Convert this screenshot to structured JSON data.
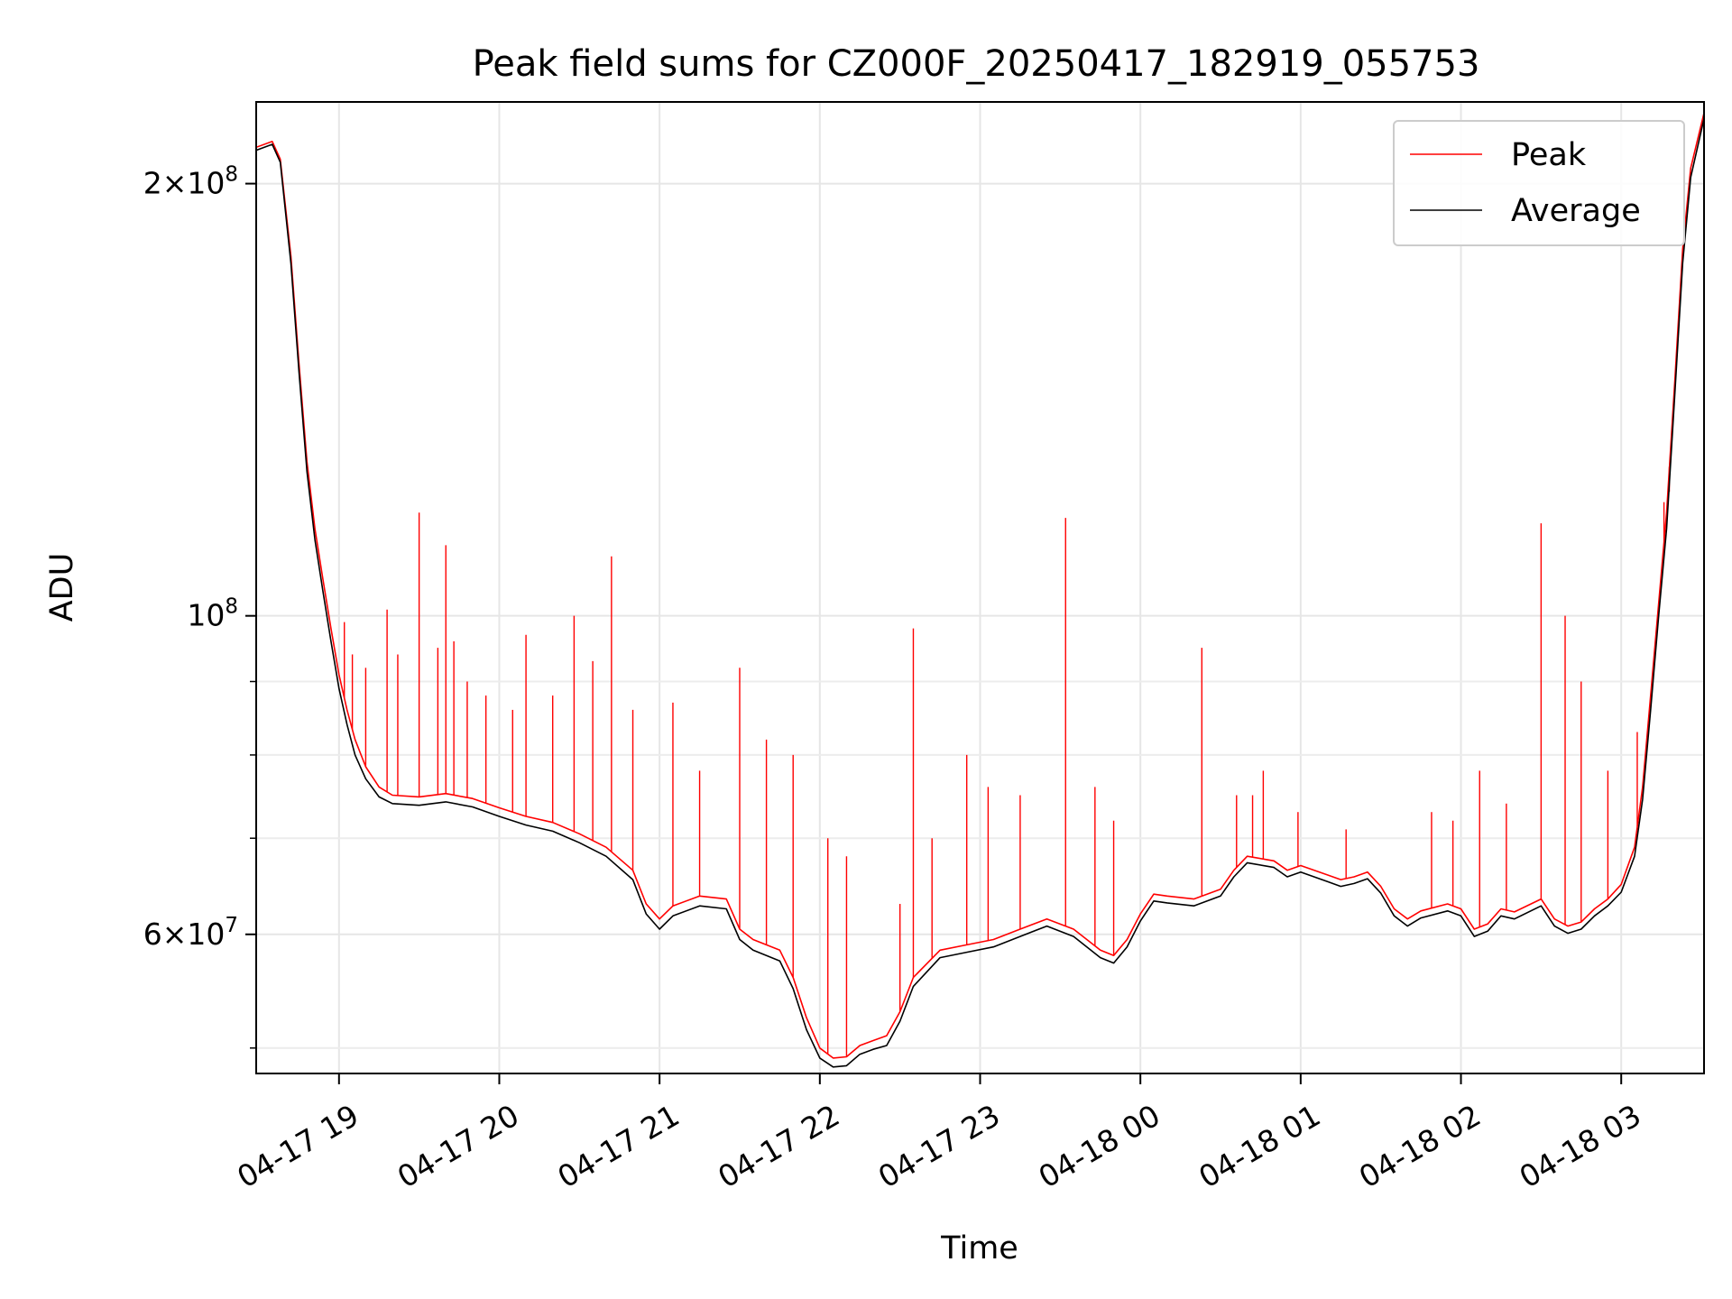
{
  "chart_data": {
    "type": "line",
    "title": "Peak field sums for CZ000F_20250417_182919_055753",
    "xlabel": "Time",
    "ylabel": "ADU",
    "y_scale": "log",
    "ylim": [
      48000000,
      228000000
    ],
    "xlim": [
      "2025-04-17 18:29",
      "2025-04-18 03:31"
    ],
    "grid": true,
    "legend_position": "top-right",
    "x_ticks": [
      {
        "t": "2025-04-17 19:00",
        "label": "04-17 19"
      },
      {
        "t": "2025-04-17 20:00",
        "label": "04-17 20"
      },
      {
        "t": "2025-04-17 21:00",
        "label": "04-17 21"
      },
      {
        "t": "2025-04-17 22:00",
        "label": "04-17 22"
      },
      {
        "t": "2025-04-17 23:00",
        "label": "04-17 23"
      },
      {
        "t": "2025-04-18 00:00",
        "label": "04-18 00"
      },
      {
        "t": "2025-04-18 01:00",
        "label": "04-18 01"
      },
      {
        "t": "2025-04-18 02:00",
        "label": "04-18 02"
      },
      {
        "t": "2025-04-18 03:00",
        "label": "04-18 03"
      }
    ],
    "y_ticks": [
      {
        "value": 60000000,
        "base": "6",
        "exp": "7"
      },
      {
        "value": 100000000,
        "base": "",
        "exp": "8"
      },
      {
        "value": 200000000,
        "base": "2",
        "exp": "8"
      }
    ],
    "y_minor_ticks": [
      50000000,
      70000000,
      80000000,
      90000000
    ],
    "series": [
      {
        "name": "Peak",
        "color": "#ff0000",
        "points": [
          [
            "2025-04-17 18:29",
            212000000
          ],
          [
            "2025-04-17 18:35",
            214000000
          ],
          [
            "2025-04-17 18:38",
            208000000
          ],
          [
            "2025-04-17 18:42",
            178000000
          ],
          [
            "2025-04-17 18:45",
            150000000
          ],
          [
            "2025-04-17 18:48",
            128000000
          ],
          [
            "2025-04-17 18:51",
            115000000
          ],
          [
            "2025-04-17 18:54",
            106000000
          ],
          [
            "2025-04-17 18:57",
            98000000
          ],
          [
            "2025-04-17 19:00",
            91000000
          ],
          [
            "2025-04-17 19:03",
            86000000
          ],
          [
            "2025-04-17 19:06",
            82000000
          ],
          [
            "2025-04-17 19:10",
            78500000
          ],
          [
            "2025-04-17 19:15",
            76000000
          ],
          [
            "2025-04-17 19:20",
            75000000
          ],
          [
            "2025-04-17 19:30",
            74800000
          ],
          [
            "2025-04-17 19:40",
            75200000
          ],
          [
            "2025-04-17 19:50",
            74600000
          ],
          [
            "2025-04-17 20:00",
            73500000
          ],
          [
            "2025-04-17 20:10",
            72500000
          ],
          [
            "2025-04-17 20:20",
            71800000
          ],
          [
            "2025-04-17 20:30",
            70500000
          ],
          [
            "2025-04-17 20:40",
            69000000
          ],
          [
            "2025-04-17 20:50",
            66500000
          ],
          [
            "2025-04-17 20:55",
            63000000
          ],
          [
            "2025-04-17 21:00",
            61500000
          ],
          [
            "2025-04-17 21:05",
            62800000
          ],
          [
            "2025-04-17 21:15",
            63800000
          ],
          [
            "2025-04-17 21:25",
            63500000
          ],
          [
            "2025-04-17 21:30",
            60500000
          ],
          [
            "2025-04-17 21:35",
            59500000
          ],
          [
            "2025-04-17 21:45",
            58500000
          ],
          [
            "2025-04-17 21:50",
            56000000
          ],
          [
            "2025-04-17 21:55",
            52500000
          ],
          [
            "2025-04-17 22:00",
            50000000
          ],
          [
            "2025-04-17 22:05",
            49200000
          ],
          [
            "2025-04-17 22:10",
            49300000
          ],
          [
            "2025-04-17 22:15",
            50200000
          ],
          [
            "2025-04-17 22:20",
            50600000
          ],
          [
            "2025-04-17 22:25",
            51000000
          ],
          [
            "2025-04-17 22:30",
            53000000
          ],
          [
            "2025-04-17 22:35",
            56000000
          ],
          [
            "2025-04-17 22:45",
            58500000
          ],
          [
            "2025-04-17 22:55",
            59000000
          ],
          [
            "2025-04-17 23:05",
            59500000
          ],
          [
            "2025-04-17 23:15",
            60500000
          ],
          [
            "2025-04-17 23:25",
            61500000
          ],
          [
            "2025-04-17 23:35",
            60500000
          ],
          [
            "2025-04-17 23:45",
            58500000
          ],
          [
            "2025-04-17 23:50",
            58000000
          ],
          [
            "2025-04-17 23:55",
            59500000
          ],
          [
            "2025-04-18 00:00",
            62000000
          ],
          [
            "2025-04-18 00:05",
            64000000
          ],
          [
            "2025-04-18 00:10",
            63800000
          ],
          [
            "2025-04-18 00:20",
            63500000
          ],
          [
            "2025-04-18 00:30",
            64500000
          ],
          [
            "2025-04-18 00:35",
            66500000
          ],
          [
            "2025-04-18 00:40",
            68000000
          ],
          [
            "2025-04-18 00:50",
            67500000
          ],
          [
            "2025-04-18 00:55",
            66500000
          ],
          [
            "2025-04-18 01:00",
            67000000
          ],
          [
            "2025-04-18 01:10",
            66000000
          ],
          [
            "2025-04-18 01:15",
            65500000
          ],
          [
            "2025-04-18 01:20",
            65800000
          ],
          [
            "2025-04-18 01:25",
            66300000
          ],
          [
            "2025-04-18 01:30",
            64800000
          ],
          [
            "2025-04-18 01:35",
            62500000
          ],
          [
            "2025-04-18 01:40",
            61500000
          ],
          [
            "2025-04-18 01:45",
            62300000
          ],
          [
            "2025-04-18 01:55",
            63000000
          ],
          [
            "2025-04-18 02:00",
            62500000
          ],
          [
            "2025-04-18 02:05",
            60500000
          ],
          [
            "2025-04-18 02:10",
            61000000
          ],
          [
            "2025-04-18 02:15",
            62500000
          ],
          [
            "2025-04-18 02:20",
            62200000
          ],
          [
            "2025-04-18 02:30",
            63500000
          ],
          [
            "2025-04-18 02:35",
            61500000
          ],
          [
            "2025-04-18 02:40",
            60800000
          ],
          [
            "2025-04-18 02:45",
            61200000
          ],
          [
            "2025-04-18 02:50",
            62500000
          ],
          [
            "2025-04-18 02:55",
            63500000
          ],
          [
            "2025-04-18 03:00",
            65000000
          ],
          [
            "2025-04-18 03:05",
            69000000
          ],
          [
            "2025-04-18 03:08",
            76000000
          ],
          [
            "2025-04-18 03:11",
            88000000
          ],
          [
            "2025-04-18 03:14",
            102000000
          ],
          [
            "2025-04-18 03:17",
            118000000
          ],
          [
            "2025-04-18 03:20",
            145000000
          ],
          [
            "2025-04-18 03:23",
            180000000
          ],
          [
            "2025-04-18 03:26",
            205000000
          ],
          [
            "2025-04-18 03:31",
            224000000
          ]
        ],
        "spikes": [
          [
            "2025-04-17 19:02",
            99000000
          ],
          [
            "2025-04-17 19:05",
            94000000
          ],
          [
            "2025-04-17 19:10",
            92000000
          ],
          [
            "2025-04-17 19:18",
            101000000
          ],
          [
            "2025-04-17 19:22",
            94000000
          ],
          [
            "2025-04-17 19:30",
            118000000
          ],
          [
            "2025-04-17 19:37",
            95000000
          ],
          [
            "2025-04-17 19:40",
            112000000
          ],
          [
            "2025-04-17 19:43",
            96000000
          ],
          [
            "2025-04-17 19:48",
            90000000
          ],
          [
            "2025-04-17 19:55",
            88000000
          ],
          [
            "2025-04-17 20:05",
            86000000
          ],
          [
            "2025-04-17 20:10",
            97000000
          ],
          [
            "2025-04-17 20:20",
            88000000
          ],
          [
            "2025-04-17 20:28",
            100000000
          ],
          [
            "2025-04-17 20:35",
            93000000
          ],
          [
            "2025-04-17 20:42",
            110000000
          ],
          [
            "2025-04-17 20:50",
            86000000
          ],
          [
            "2025-04-17 21:05",
            87000000
          ],
          [
            "2025-04-17 21:15",
            78000000
          ],
          [
            "2025-04-17 21:30",
            92000000
          ],
          [
            "2025-04-17 21:40",
            82000000
          ],
          [
            "2025-04-17 21:50",
            80000000
          ],
          [
            "2025-04-17 22:03",
            70000000
          ],
          [
            "2025-04-17 22:10",
            68000000
          ],
          [
            "2025-04-17 22:30",
            63000000
          ],
          [
            "2025-04-17 22:35",
            98000000
          ],
          [
            "2025-04-17 22:42",
            70000000
          ],
          [
            "2025-04-17 22:55",
            80000000
          ],
          [
            "2025-04-17 23:03",
            76000000
          ],
          [
            "2025-04-17 23:15",
            75000000
          ],
          [
            "2025-04-17 23:32",
            117000000
          ],
          [
            "2025-04-17 23:43",
            76000000
          ],
          [
            "2025-04-17 23:50",
            72000000
          ],
          [
            "2025-04-18 00:23",
            95000000
          ],
          [
            "2025-04-18 00:36",
            75000000
          ],
          [
            "2025-04-18 00:42",
            75000000
          ],
          [
            "2025-04-18 00:46",
            78000000
          ],
          [
            "2025-04-18 00:59",
            73000000
          ],
          [
            "2025-04-18 01:17",
            71000000
          ],
          [
            "2025-04-18 01:49",
            73000000
          ],
          [
            "2025-04-18 01:57",
            72000000
          ],
          [
            "2025-04-18 02:07",
            78000000
          ],
          [
            "2025-04-18 02:17",
            74000000
          ],
          [
            "2025-04-18 02:30",
            116000000
          ],
          [
            "2025-04-18 02:39",
            100000000
          ],
          [
            "2025-04-18 02:45",
            90000000
          ],
          [
            "2025-04-18 02:55",
            78000000
          ],
          [
            "2025-04-18 03:06",
            83000000
          ],
          [
            "2025-04-18 03:16",
            120000000
          ],
          [
            "2025-04-18 03:18",
            122000000
          ]
        ]
      },
      {
        "name": "Average",
        "color": "#000000",
        "points": [
          [
            "2025-04-17 18:29",
            211000000
          ],
          [
            "2025-04-17 18:35",
            213000000
          ],
          [
            "2025-04-17 18:38",
            207000000
          ],
          [
            "2025-04-17 18:42",
            176000000
          ],
          [
            "2025-04-17 18:45",
            148000000
          ],
          [
            "2025-04-17 18:48",
            126000000
          ],
          [
            "2025-04-17 18:51",
            113000000
          ],
          [
            "2025-04-17 18:54",
            104000000
          ],
          [
            "2025-04-17 18:57",
            96000000
          ],
          [
            "2025-04-17 19:00",
            89000000
          ],
          [
            "2025-04-17 19:03",
            84000000
          ],
          [
            "2025-04-17 19:06",
            80000000
          ],
          [
            "2025-04-17 19:10",
            77000000
          ],
          [
            "2025-04-17 19:15",
            74800000
          ],
          [
            "2025-04-17 19:20",
            74000000
          ],
          [
            "2025-04-17 19:30",
            73800000
          ],
          [
            "2025-04-17 19:40",
            74200000
          ],
          [
            "2025-04-17 19:50",
            73600000
          ],
          [
            "2025-04-17 20:00",
            72500000
          ],
          [
            "2025-04-17 20:10",
            71500000
          ],
          [
            "2025-04-17 20:20",
            70800000
          ],
          [
            "2025-04-17 20:30",
            69500000
          ],
          [
            "2025-04-17 20:40",
            68000000
          ],
          [
            "2025-04-17 20:50",
            65500000
          ],
          [
            "2025-04-17 20:55",
            62000000
          ],
          [
            "2025-04-17 21:00",
            60500000
          ],
          [
            "2025-04-17 21:05",
            61800000
          ],
          [
            "2025-04-17 21:15",
            62800000
          ],
          [
            "2025-04-17 21:25",
            62500000
          ],
          [
            "2025-04-17 21:30",
            59500000
          ],
          [
            "2025-04-17 21:35",
            58500000
          ],
          [
            "2025-04-17 21:45",
            57500000
          ],
          [
            "2025-04-17 21:50",
            55000000
          ],
          [
            "2025-04-17 21:55",
            51500000
          ],
          [
            "2025-04-17 22:00",
            49200000
          ],
          [
            "2025-04-17 22:05",
            48500000
          ],
          [
            "2025-04-17 22:10",
            48600000
          ],
          [
            "2025-04-17 22:15",
            49500000
          ],
          [
            "2025-04-17 22:20",
            49900000
          ],
          [
            "2025-04-17 22:25",
            50200000
          ],
          [
            "2025-04-17 22:30",
            52200000
          ],
          [
            "2025-04-17 22:35",
            55200000
          ],
          [
            "2025-04-17 22:45",
            57800000
          ],
          [
            "2025-04-17 22:55",
            58300000
          ],
          [
            "2025-04-17 23:05",
            58800000
          ],
          [
            "2025-04-17 23:15",
            59800000
          ],
          [
            "2025-04-17 23:25",
            60800000
          ],
          [
            "2025-04-17 23:35",
            59800000
          ],
          [
            "2025-04-17 23:45",
            57800000
          ],
          [
            "2025-04-17 23:50",
            57300000
          ],
          [
            "2025-04-17 23:55",
            58800000
          ],
          [
            "2025-04-18 00:00",
            61300000
          ],
          [
            "2025-04-18 00:05",
            63300000
          ],
          [
            "2025-04-18 00:10",
            63100000
          ],
          [
            "2025-04-18 00:20",
            62800000
          ],
          [
            "2025-04-18 00:30",
            63800000
          ],
          [
            "2025-04-18 00:35",
            65800000
          ],
          [
            "2025-04-18 00:40",
            67300000
          ],
          [
            "2025-04-18 00:50",
            66800000
          ],
          [
            "2025-04-18 00:55",
            65800000
          ],
          [
            "2025-04-18 01:00",
            66300000
          ],
          [
            "2025-04-18 01:10",
            65300000
          ],
          [
            "2025-04-18 01:15",
            64800000
          ],
          [
            "2025-04-18 01:20",
            65100000
          ],
          [
            "2025-04-18 01:25",
            65600000
          ],
          [
            "2025-04-18 01:30",
            64100000
          ],
          [
            "2025-04-18 01:35",
            61800000
          ],
          [
            "2025-04-18 01:40",
            60800000
          ],
          [
            "2025-04-18 01:45",
            61600000
          ],
          [
            "2025-04-18 01:55",
            62300000
          ],
          [
            "2025-04-18 02:00",
            61800000
          ],
          [
            "2025-04-18 02:05",
            59800000
          ],
          [
            "2025-04-18 02:10",
            60300000
          ],
          [
            "2025-04-18 02:15",
            61800000
          ],
          [
            "2025-04-18 02:20",
            61500000
          ],
          [
            "2025-04-18 02:30",
            62800000
          ],
          [
            "2025-04-18 02:35",
            60800000
          ],
          [
            "2025-04-18 02:40",
            60100000
          ],
          [
            "2025-04-18 02:45",
            60500000
          ],
          [
            "2025-04-18 02:50",
            61800000
          ],
          [
            "2025-04-18 02:55",
            62800000
          ],
          [
            "2025-04-18 03:00",
            64200000
          ],
          [
            "2025-04-18 03:05",
            68000000
          ],
          [
            "2025-04-18 03:08",
            74500000
          ],
          [
            "2025-04-18 03:11",
            86000000
          ],
          [
            "2025-04-18 03:14",
            100000000
          ],
          [
            "2025-04-18 03:17",
            115000000
          ],
          [
            "2025-04-18 03:20",
            142000000
          ],
          [
            "2025-04-18 03:23",
            176000000
          ],
          [
            "2025-04-18 03:26",
            202000000
          ],
          [
            "2025-04-18 03:31",
            222000000
          ]
        ]
      }
    ]
  }
}
